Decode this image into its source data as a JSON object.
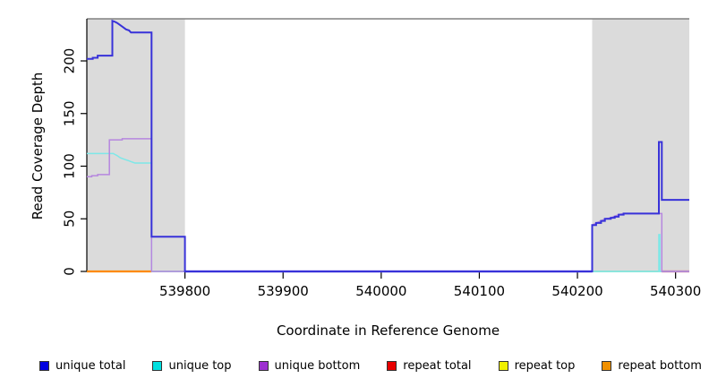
{
  "figure": {
    "y_axis": {
      "label": "Read Coverage Depth",
      "ticks": [
        0,
        50,
        100,
        150,
        200
      ]
    },
    "x_axis": {
      "label": "Coordinate in Reference Genome",
      "ticks": [
        539800,
        539900,
        540000,
        540100,
        540200,
        540300
      ]
    },
    "legend": [
      {
        "label": "unique total",
        "color": "#0000E0"
      },
      {
        "label": "unique top",
        "color": "#00E0E0"
      },
      {
        "label": "unique bottom",
        "color": "#9D2FD0"
      },
      {
        "label": "repeat total",
        "color": "#E80000"
      },
      {
        "label": "repeat top",
        "color": "#F0F000"
      },
      {
        "label": "repeat bottom",
        "color": "#F09000"
      }
    ],
    "colors": {
      "shaded_region": "#DBDBDB",
      "frame_top_line": "#808080",
      "axis": "#000000"
    }
  },
  "chart_data": {
    "type": "line",
    "title": "",
    "xlabel": "Coordinate in Reference Genome",
    "ylabel": "Read Coverage Depth",
    "xlim": [
      539700,
      540314
    ],
    "ylim": [
      0,
      240
    ],
    "grid": false,
    "legend_position": "bottom",
    "shaded_regions": [
      {
        "from": 539700,
        "to": 539800
      },
      {
        "from": 540215,
        "to": 540314
      }
    ],
    "series": [
      {
        "name": "unique total",
        "color": "#3832D9",
        "width": 2,
        "points": [
          [
            539700,
            202
          ],
          [
            539706,
            202
          ],
          [
            539706,
            203
          ],
          [
            539711,
            203
          ],
          [
            539711,
            205
          ],
          [
            539726,
            205
          ],
          [
            539726,
            238
          ],
          [
            539729,
            237
          ],
          [
            539731,
            236
          ],
          [
            539734,
            234
          ],
          [
            539737,
            232
          ],
          [
            539740,
            230
          ],
          [
            539743,
            229
          ],
          [
            539745,
            227
          ],
          [
            539766,
            227
          ],
          [
            539766,
            33
          ],
          [
            539800,
            33
          ],
          [
            539800,
            0
          ],
          [
            540215,
            0
          ],
          [
            540215,
            44
          ],
          [
            540219,
            44
          ],
          [
            540219,
            46
          ],
          [
            540224,
            46
          ],
          [
            540224,
            48
          ],
          [
            540228,
            48
          ],
          [
            540228,
            50
          ],
          [
            540234,
            50
          ],
          [
            540234,
            51
          ],
          [
            540238,
            51
          ],
          [
            540238,
            52
          ],
          [
            540242,
            52
          ],
          [
            540242,
            54
          ],
          [
            540247,
            54
          ],
          [
            540247,
            55
          ],
          [
            540283,
            55
          ],
          [
            540283,
            123
          ],
          [
            540286,
            123
          ],
          [
            540286,
            68
          ],
          [
            540314,
            68
          ]
        ]
      },
      {
        "name": "unique top",
        "color": "#7DE8E8",
        "width": 1.5,
        "points": [
          [
            539700,
            112
          ],
          [
            539727,
            112
          ],
          [
            539729,
            111
          ],
          [
            539731,
            110
          ],
          [
            539734,
            108
          ],
          [
            539737,
            107
          ],
          [
            539740,
            106
          ],
          [
            539743,
            105
          ],
          [
            539746,
            104
          ],
          [
            539749,
            103
          ],
          [
            539766,
            103
          ],
          [
            539766,
            0
          ],
          [
            540283,
            0
          ],
          [
            540283,
            35
          ],
          [
            540284,
            35
          ],
          [
            540284,
            0
          ],
          [
            540314,
            0
          ]
        ]
      },
      {
        "name": "unique bottom",
        "color": "#B687DF",
        "width": 1.5,
        "points": [
          [
            539700,
            90
          ],
          [
            539705,
            90
          ],
          [
            539705,
            91
          ],
          [
            539711,
            91
          ],
          [
            539711,
            92
          ],
          [
            539723,
            92
          ],
          [
            539723,
            125
          ],
          [
            539736,
            125
          ],
          [
            539736,
            126
          ],
          [
            539766,
            126
          ],
          [
            539766,
            0
          ],
          [
            540215,
            0
          ],
          [
            540215,
            44
          ],
          [
            540219,
            46
          ],
          [
            540224,
            48
          ],
          [
            540228,
            50
          ],
          [
            540234,
            51
          ],
          [
            540242,
            54
          ],
          [
            540247,
            55
          ],
          [
            540286,
            55
          ],
          [
            540286,
            0
          ],
          [
            540314,
            0
          ]
        ]
      }
    ],
    "baseline_segments": [
      {
        "label": "repeat bottom",
        "from": 539700,
        "to": 539766,
        "value": 0,
        "color": "#FF8A00",
        "width": 2.2
      },
      {
        "label": "repeat top",
        "from": 539766,
        "to": 539800,
        "value": 0,
        "color": "#82CC82",
        "width": 1.6
      },
      {
        "label": "unique total",
        "from": 539800,
        "to": 540215,
        "value": 0,
        "color": "#6A5BE6",
        "width": 2.4
      },
      {
        "label": "repeat top",
        "from": 540215,
        "to": 540286,
        "value": 0,
        "color": "#82CC82",
        "width": 1.6
      },
      {
        "label": "repeat total",
        "from": 540286,
        "to": 540314,
        "value": 0,
        "color": "#E84560",
        "width": 2.2
      }
    ]
  }
}
